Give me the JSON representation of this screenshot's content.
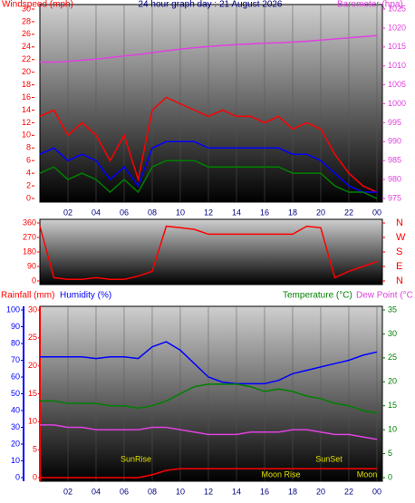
{
  "chart_data": [
    {
      "type": "line",
      "title": "24 hour graph day : 21 August 2026",
      "ylabel": "Windspeed (mph)",
      "y2label": "Barometer (hpa)",
      "x": [
        0,
        1,
        2,
        3,
        4,
        5,
        6,
        7,
        8,
        9,
        10,
        11,
        12,
        13,
        14,
        15,
        16,
        17,
        18,
        19,
        20,
        21,
        22,
        23,
        24
      ],
      "xlim": [
        0,
        24.26
      ],
      "xticks": [
        {
          "value": 2,
          "label": "02"
        },
        {
          "value": 4,
          "label": "04"
        },
        {
          "value": 6,
          "label": "06"
        },
        {
          "value": 8,
          "label": "08"
        },
        10,
        12,
        14,
        16,
        18,
        20,
        22,
        {
          "value": 24,
          "label": "00"
        }
      ],
      "ylim": [
        0,
        30
      ],
      "yticks": [
        0,
        2,
        4,
        6,
        8,
        10,
        12,
        14,
        16,
        18,
        20,
        22,
        24,
        26,
        28,
        30
      ],
      "y2lim": [
        975,
        1025
      ],
      "y2ticks": [
        975,
        980,
        985,
        990,
        995,
        1000,
        1005,
        1010,
        1015,
        1020,
        1025
      ],
      "series": [
        {
          "color": "#ff0000",
          "values": [
            13,
            14,
            10,
            12,
            10,
            6,
            10,
            3,
            14,
            16,
            15,
            14,
            13,
            14,
            13,
            13,
            12,
            13,
            11,
            12,
            11,
            7,
            4,
            2,
            1
          ]
        },
        {
          "color": "#0000ff",
          "values": [
            7,
            8,
            6,
            7,
            6,
            3,
            5,
            2,
            8,
            9,
            9,
            9,
            8,
            8,
            8,
            8,
            8,
            8,
            7,
            7,
            6,
            4,
            2,
            1,
            1
          ]
        },
        {
          "color": "#008000",
          "values": [
            4,
            5,
            3,
            4,
            3,
            1,
            3,
            1,
            5,
            6,
            6,
            6,
            5,
            5,
            5,
            5,
            5,
            5,
            4,
            4,
            4,
            2,
            1,
            1,
            0
          ]
        },
        {
          "color": "#e040e0",
          "axis": "y2",
          "values": [
            1011,
            1011,
            1011.2,
            1011.5,
            1011.8,
            1012.2,
            1012.6,
            1013,
            1013.5,
            1014,
            1014.4,
            1014.8,
            1015.1,
            1015.4,
            1015.6,
            1015.8,
            1016,
            1016.1,
            1016.3,
            1016.5,
            1016.8,
            1017.1,
            1017.4,
            1017.7,
            1018
          ]
        }
      ]
    },
    {
      "type": "line",
      "x": [
        0,
        1,
        2,
        3,
        4,
        5,
        6,
        7,
        8,
        9,
        10,
        11,
        12,
        13,
        14,
        15,
        16,
        17,
        18,
        19,
        20,
        21,
        22,
        23,
        24
      ],
      "xlim": [
        0,
        24.26
      ],
      "ylim": [
        0,
        360
      ],
      "yticks": [
        0,
        90,
        180,
        270,
        360
      ],
      "y2lim": [
        0,
        360
      ],
      "y2ticks": [
        {
          "value": 360,
          "label": "N"
        },
        {
          "value": 270,
          "label": "W"
        },
        {
          "value": 180,
          "label": "S"
        },
        {
          "value": 90,
          "label": "E"
        },
        {
          "value": 0,
          "label": "N"
        }
      ],
      "series": [
        {
          "color": "#ff0000",
          "values": [
            340,
            20,
            10,
            10,
            20,
            10,
            10,
            30,
            60,
            340,
            330,
            320,
            290,
            290,
            290,
            290,
            290,
            290,
            290,
            340,
            330,
            20,
            60,
            90,
            120
          ]
        }
      ]
    },
    {
      "type": "line",
      "x": [
        0,
        1,
        2,
        3,
        4,
        5,
        6,
        7,
        8,
        9,
        10,
        11,
        12,
        13,
        14,
        15,
        16,
        17,
        18,
        19,
        20,
        21,
        22,
        23,
        24
      ],
      "xlim": [
        0,
        24.26
      ],
      "xticks": [
        {
          "value": 2,
          "label": "02"
        },
        {
          "value": 4,
          "label": "04"
        },
        {
          "value": 6,
          "label": "06"
        },
        {
          "value": 8,
          "label": "08"
        },
        10,
        12,
        14,
        16,
        18,
        20,
        22,
        {
          "value": 24,
          "label": "00"
        }
      ],
      "ylim": [
        0,
        30
      ],
      "yticks": [
        0,
        5,
        10,
        15,
        20,
        25,
        30
      ],
      "y3lim": [
        0,
        100
      ],
      "y3ticks": [
        0,
        10,
        20,
        30,
        40,
        50,
        60,
        70,
        80,
        90,
        100
      ],
      "y2lim": [
        0,
        35
      ],
      "y2ticks": [
        0,
        5,
        10,
        15,
        20,
        25,
        30,
        35
      ],
      "series": [
        {
          "name": "Rainfall (mm)",
          "color": "#ff0000",
          "values": [
            0,
            0,
            0,
            0,
            0,
            0,
            0,
            0,
            0.5,
            1.3,
            1.6,
            1.6,
            1.6,
            1.6,
            1.6,
            1.6,
            1.6,
            1.6,
            1.6,
            1.6,
            1.6,
            1.6,
            1.6,
            1.6,
            1.6
          ]
        },
        {
          "name": "Humidity (%)",
          "color": "#0000ff",
          "axis": "y3",
          "values": [
            72,
            72,
            72,
            72,
            71,
            72,
            72,
            71,
            78,
            81,
            76,
            68,
            60,
            57,
            56,
            56,
            56,
            58,
            62,
            64,
            66,
            68,
            70,
            73,
            75
          ]
        },
        {
          "name": "Temperature (°C)",
          "color": "#008000",
          "axis": "y2",
          "values": [
            16,
            16,
            15.5,
            15.5,
            15.5,
            15,
            15,
            14.5,
            15,
            16,
            17.5,
            19,
            19.5,
            19.5,
            19.5,
            19,
            18,
            18.5,
            18,
            17,
            16.5,
            15.5,
            15,
            14,
            13.5
          ]
        },
        {
          "name": "Dew Point (°C",
          "color": "#e040e0",
          "axis": "y2",
          "values": [
            11,
            11,
            10.5,
            10.5,
            10,
            10,
            10,
            10,
            10.5,
            10.5,
            10,
            9.5,
            9,
            9,
            9,
            9.5,
            9.5,
            9.5,
            10,
            10,
            9.5,
            9,
            9,
            8.5,
            8
          ]
        }
      ],
      "annotations": [
        "SunRise",
        "SunSet",
        "Moon Rise",
        "Moon"
      ]
    }
  ]
}
